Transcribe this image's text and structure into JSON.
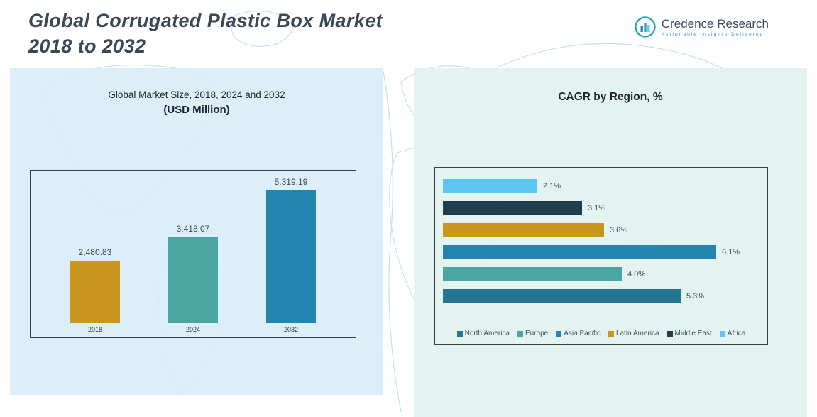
{
  "page": {
    "title_line1": "Global Corrugated Plastic Box Market",
    "title_line2": "2018 to 2032"
  },
  "logo": {
    "name": "Credence Research",
    "tagline": "Actionable Insights Delivered",
    "accent_color": "#2ba3ba"
  },
  "chart_data": [
    {
      "type": "bar",
      "title": "Global Market Size, 2018, 2024 and 2032",
      "subtitle": "(USD Million)",
      "categories": [
        "2018",
        "2024",
        "2032"
      ],
      "values": [
        2480.83,
        3418.07,
        5319.19
      ],
      "value_labels": [
        "2,480.83",
        "3,418.07",
        "5,319.19"
      ],
      "colors": [
        "#c8961c",
        "#4ba5a2",
        "#2384ad"
      ],
      "xlabel": "",
      "ylabel": "",
      "ylim": [
        0,
        5600
      ],
      "grid": false,
      "legend_position": "none"
    },
    {
      "type": "bar",
      "orientation": "horizontal",
      "title": "CAGR by Region, %",
      "series": [
        {
          "name": "Africa",
          "value": 2.1,
          "label": "2.1%",
          "color": "#5bc6f2"
        },
        {
          "name": "Middle East",
          "value": 3.1,
          "label": "3.1%",
          "color": "#1e3d4d"
        },
        {
          "name": "Latin America",
          "value": 3.6,
          "label": "3.6%",
          "color": "#c8961c"
        },
        {
          "name": "Asia Pacific",
          "value": 6.1,
          "label": "6.1%",
          "color": "#2384ad"
        },
        {
          "name": "Europe",
          "value": 4.0,
          "label": "4.0%",
          "color": "#4ba5a2"
        },
        {
          "name": "North America",
          "value": 5.3,
          "label": "5.3%",
          "color": "#26748f"
        }
      ],
      "legend_order": [
        "North America",
        "Europe",
        "Asia Pacific",
        "Latin America",
        "Middle East",
        "Africa"
      ],
      "xlim": [
        0,
        6.5
      ],
      "grid": false,
      "legend_position": "bottom"
    }
  ]
}
